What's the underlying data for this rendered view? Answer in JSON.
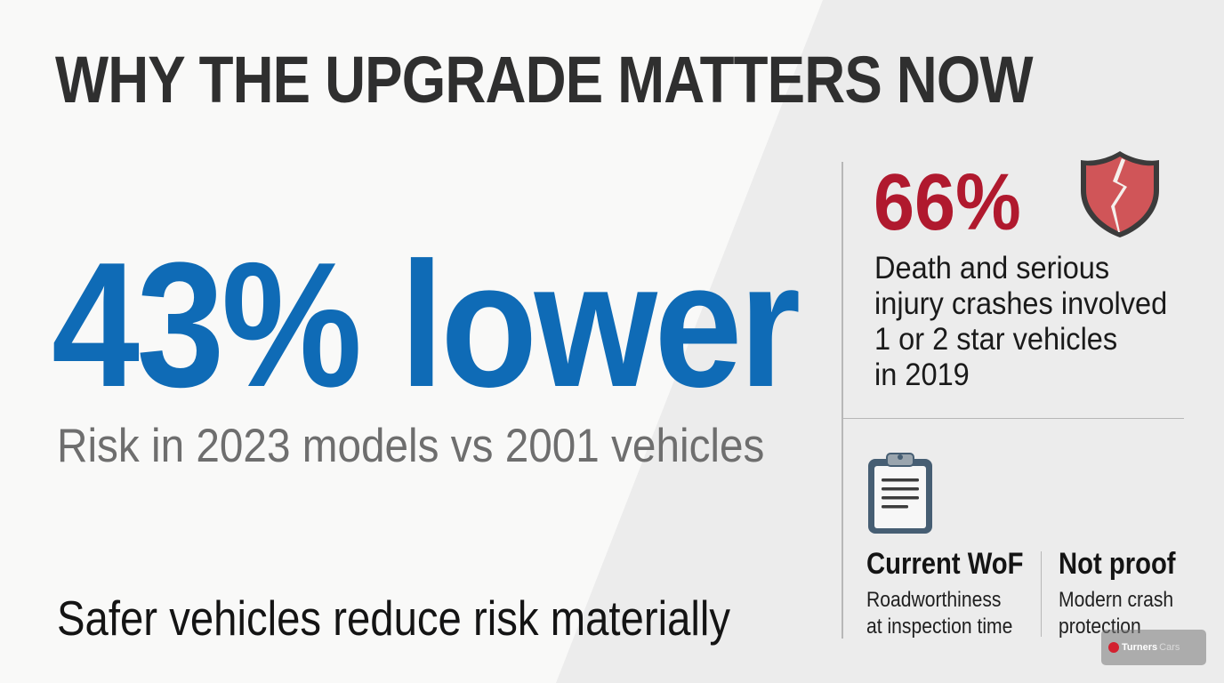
{
  "title": "WHY THE UPGRADE MATTERS NOW",
  "main_stat": {
    "value": "43% lower",
    "caption": "Risk in 2023 models vs 2001 vehicles"
  },
  "tagline": "Safer vehicles reduce risk materially",
  "side_stat": {
    "value": "66%",
    "lines": [
      "Death and serious",
      "injury crashes involved",
      "1 or 2 star vehicles",
      "in 2019"
    ],
    "icon": "broken-shield-icon"
  },
  "comparison": {
    "icon": "clipboard-icon",
    "left": {
      "heading": "Current WoF",
      "lines": [
        "Roadworthiness",
        "at inspection time"
      ]
    },
    "right": {
      "heading": "Not proof",
      "lines": [
        "Modern crash",
        "protection"
      ]
    }
  },
  "watermark": {
    "brand": "Turners",
    "brand_suffix": "Cars"
  },
  "colors": {
    "accent_blue": "#0f6bb6",
    "accent_red": "#b0192e",
    "title_text": "#2f2f2f",
    "muted_text": "#6e6e6e",
    "background_light": "#f9f9f8",
    "background_diagonal": "#ececec"
  }
}
